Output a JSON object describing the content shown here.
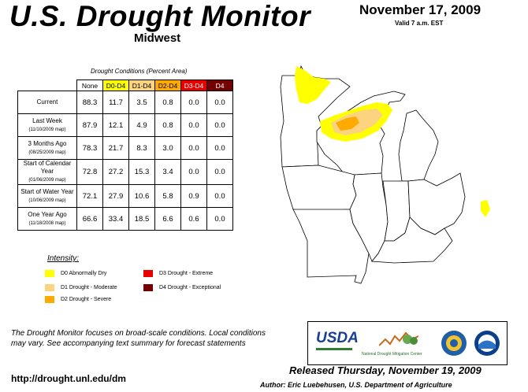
{
  "header": {
    "title": "U.S. Drought Monitor",
    "region": "Midwest",
    "date": "November 17, 2009",
    "valid": "Valid 7 a.m. EST"
  },
  "table": {
    "caption": "Drought Conditions (Percent Area)",
    "columns": [
      "None",
      "D0-D4",
      "D1-D4",
      "D2-D4",
      "D3-D4",
      "D4"
    ],
    "rows": [
      {
        "label": "Current",
        "sub": "",
        "values": [
          "88.3",
          "11.7",
          "3.5",
          "0.8",
          "0.0",
          "0.0"
        ]
      },
      {
        "label": "Last Week",
        "sub": "(11/10/2009 map)",
        "values": [
          "87.9",
          "12.1",
          "4.9",
          "0.8",
          "0.0",
          "0.0"
        ]
      },
      {
        "label": "3 Months Ago",
        "sub": "(08/25/2009 map)",
        "values": [
          "78.3",
          "21.7",
          "8.3",
          "3.0",
          "0.0",
          "0.0"
        ]
      },
      {
        "label": "Start of Calendar Year",
        "sub": "(01/06/2009 map)",
        "values": [
          "72.8",
          "27.2",
          "15.3",
          "3.4",
          "0.0",
          "0.0"
        ]
      },
      {
        "label": "Start of Water Year",
        "sub": "(10/06/2009 map)",
        "values": [
          "72.1",
          "27.9",
          "10.6",
          "5.8",
          "0.9",
          "0.0"
        ]
      },
      {
        "label": "One Year Ago",
        "sub": "(11/18/2008 map)",
        "values": [
          "66.6",
          "33.4",
          "18.5",
          "6.6",
          "0.6",
          "0.0"
        ]
      }
    ]
  },
  "legend": {
    "title": "Intensity:",
    "items": [
      {
        "label": "D0 Abnormally Dry",
        "color": "#ffff00"
      },
      {
        "label": "D1 Drought - Moderate",
        "color": "#fcd37f"
      },
      {
        "label": "D2 Drought - Severe",
        "color": "#ffaa00"
      },
      {
        "label": "D3 Drought - Extreme",
        "color": "#e60000"
      },
      {
        "label": "D4 Drought - Exceptional",
        "color": "#730000"
      }
    ]
  },
  "footer": {
    "note": "The Drought Monitor focuses on broad-scale conditions. Local conditions may vary. See accompanying text summary for forecast statements",
    "url": "http://drought.unl.edu/dm",
    "released": "Released Thursday, November 19, 2009",
    "author": "Author: Eric Luebehusen, U.S. Department of Agriculture"
  },
  "logos": {
    "usda": "USDA",
    "ndmc": "National Drought Mitigation Center"
  }
}
